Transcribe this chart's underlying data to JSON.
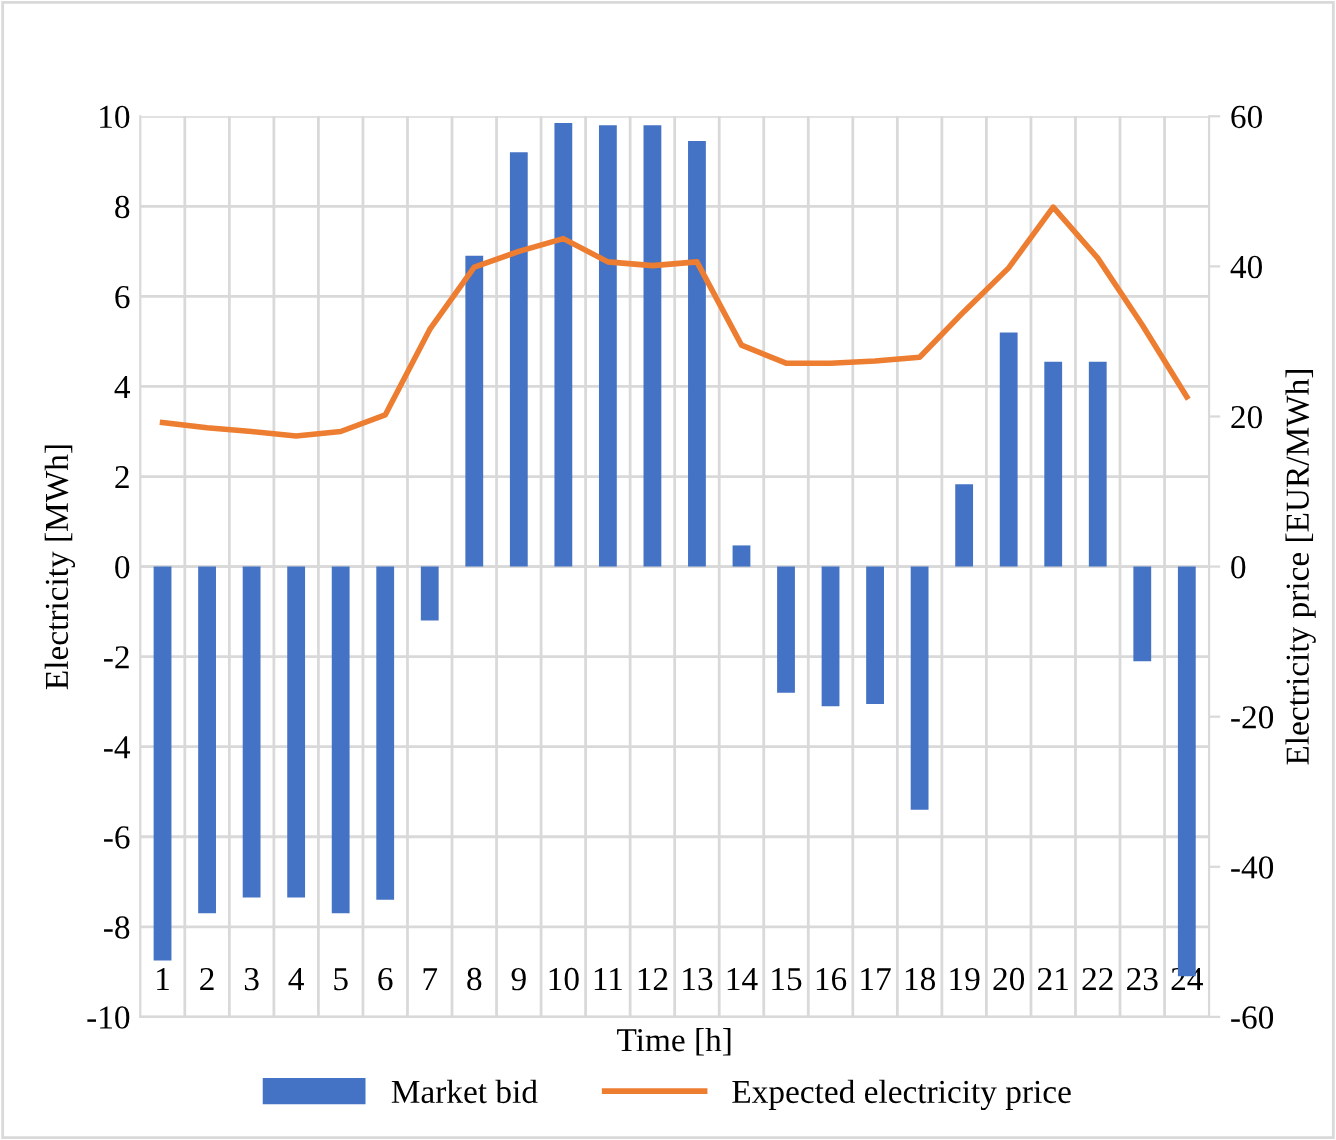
{
  "chart_data": {
    "type": "bar",
    "xlabel": "Time [h]",
    "ylabel": "Electricity [MWh]",
    "y2label": "Electricity price [EUR/MWh]",
    "categories": [
      "1",
      "2",
      "3",
      "4",
      "5",
      "6",
      "7",
      "8",
      "9",
      "10",
      "11",
      "12",
      "13",
      "14",
      "15",
      "16",
      "17",
      "18",
      "19",
      "20",
      "21",
      "22",
      "23",
      "24"
    ],
    "series": [
      {
        "name": "Market bid",
        "color": "#4472c4",
        "values": [
          -8.75,
          -7.7,
          -7.35,
          -7.35,
          -7.7,
          -7.4,
          -1.2,
          6.9,
          9.2,
          9.85,
          9.8,
          9.8,
          9.45,
          0.47,
          -2.8,
          -3.1,
          -3.05,
          -5.4,
          1.83,
          5.2,
          4.55,
          4.55,
          -2.1,
          -9.1
        ]
      },
      {
        "name": "Expected electricity price",
        "type": "line",
        "axis": "y2",
        "color": "#ed7d31",
        "values": [
          19.2,
          18.5,
          18.0,
          17.4,
          18.0,
          20.2,
          31.6,
          39.9,
          42.0,
          43.7,
          40.6,
          40.1,
          40.6,
          29.5,
          27.1,
          27.1,
          27.4,
          27.9,
          34.0,
          39.8,
          47.9,
          41.1,
          32.2,
          22.6
        ]
      }
    ],
    "ylim": [
      -10,
      10
    ],
    "yticks": [
      -10,
      -8,
      -6,
      -4,
      -2,
      0,
      2,
      4,
      6,
      8,
      10
    ],
    "y2lim": [
      -60,
      60
    ],
    "y2ticks": [
      -60,
      -40,
      -20,
      0,
      20,
      40,
      60
    ],
    "grid": true,
    "legend": "bottom"
  }
}
